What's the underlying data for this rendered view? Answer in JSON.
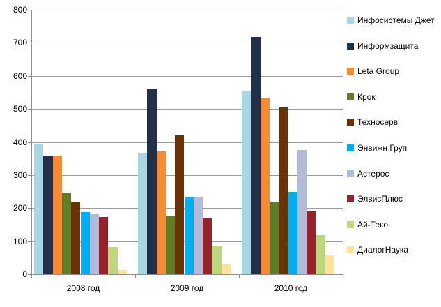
{
  "chart_data": {
    "type": "bar",
    "title": "",
    "xlabel": "",
    "ylabel": "",
    "categories": [
      "2008 год",
      "2009 год",
      "2010 год"
    ],
    "series": [
      {
        "name": "Инфосистемы Джет",
        "color": "#A9D6E3",
        "values": [
          395,
          368,
          555
        ]
      },
      {
        "name": "Информзащита",
        "color": "#23304B",
        "values": [
          357,
          560,
          717
        ]
      },
      {
        "name": "Leta Group",
        "color": "#F78B33",
        "values": [
          357,
          372,
          532
        ]
      },
      {
        "name": "Крок",
        "color": "#5F7D28",
        "values": [
          248,
          177,
          218
        ]
      },
      {
        "name": "Техносерв",
        "color": "#6B3305",
        "values": [
          218,
          420,
          505
        ]
      },
      {
        "name": "Энвижн Груп",
        "color": "#00AEEF",
        "values": [
          188,
          234,
          250
        ]
      },
      {
        "name": "Астерос",
        "color": "#B3BBD9",
        "values": [
          182,
          234,
          375
        ]
      },
      {
        "name": "ЭлвисПлюс",
        "color": "#97222A",
        "values": [
          173,
          172,
          193
        ]
      },
      {
        "name": "Ай-Теко",
        "color": "#BCD77E",
        "values": [
          83,
          85,
          118
        ]
      },
      {
        "name": "ДиалогНаука",
        "color": "#FDE39E",
        "values": [
          13,
          29,
          57
        ]
      }
    ],
    "ylim": [
      0,
      800
    ],
    "ytick_step": 100,
    "y_tick_labels": [
      "0",
      "100",
      "200",
      "300",
      "400",
      "500",
      "600",
      "700",
      "800"
    ],
    "grid": true,
    "legend_position": "right",
    "colors": {
      "gridline": "#9c9c9c",
      "axis": "#8e8e8e",
      "text": "#000000",
      "background": "#ffffff"
    }
  }
}
